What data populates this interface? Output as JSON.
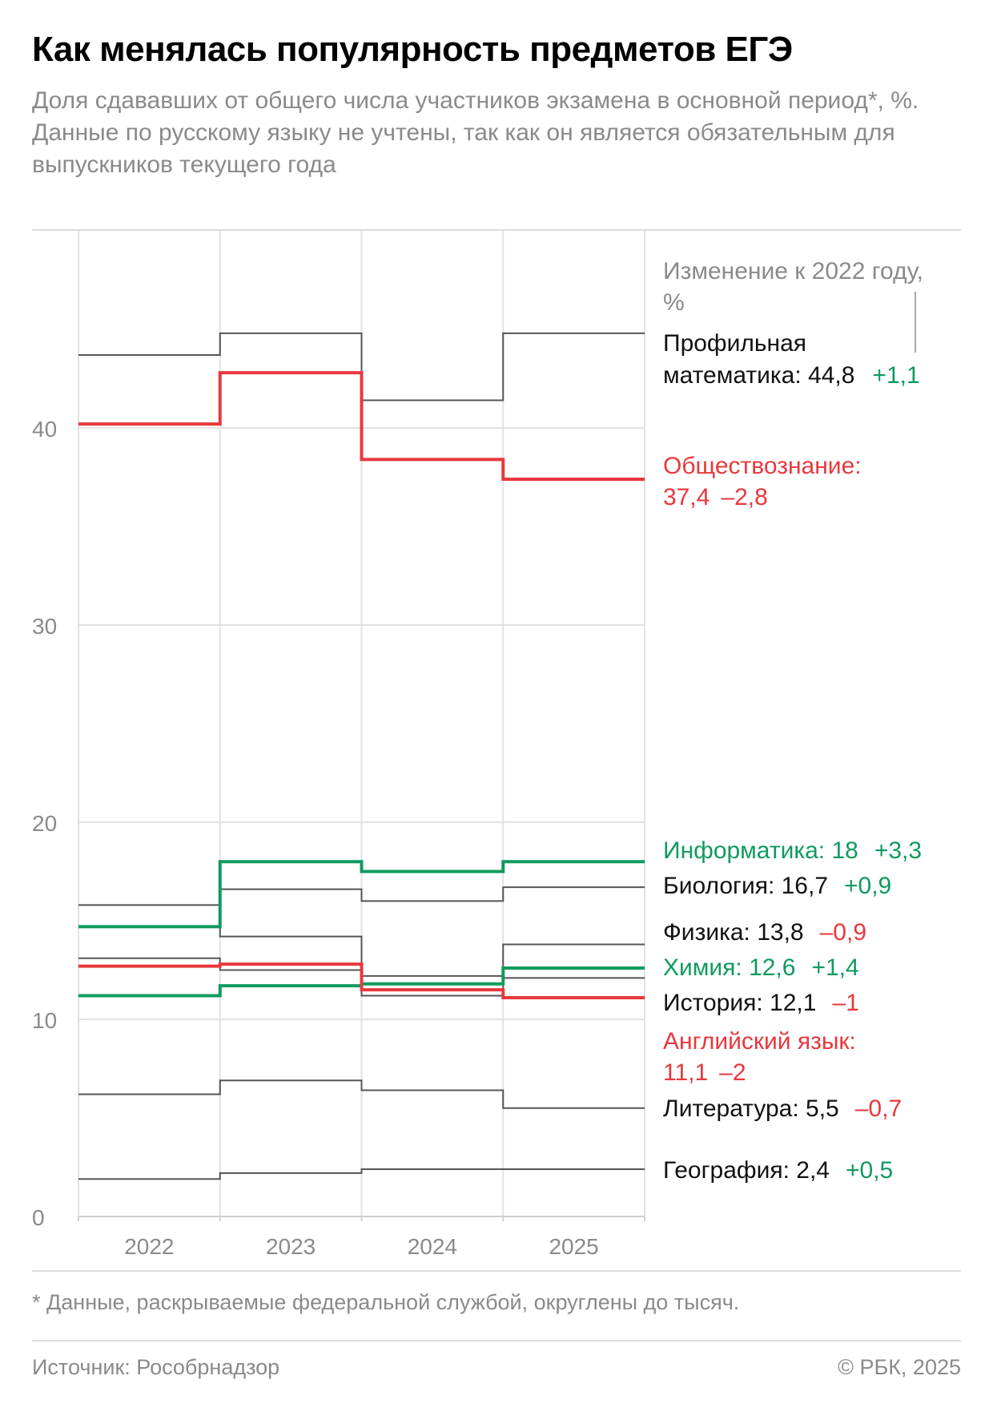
{
  "title": "Как менялась популярность предметов ЕГЭ",
  "subtitle": {
    "line1": "Доля сдававших от общего числа участников экзамена в основной период*, %.",
    "line2": "Данные по русскому языку не учтены, так как он является обязательным для выпускников текущего года"
  },
  "footnote": "* Данные, раскрываемые федеральной службой, округлены до тысяч.",
  "source": "Источник: Рособрнадзор",
  "copyright": "© РБК, 2025",
  "colors": {
    "neutral": "#555555",
    "decline": "#e8383d",
    "growth": "#0f9b5e",
    "grid": "#e2e2e2",
    "axis_text": "#8a8a8a"
  },
  "chart_data": {
    "type": "line",
    "step": true,
    "title": "Как менялась популярность предметов ЕГЭ",
    "x": [
      "2022",
      "2023",
      "2024",
      "2025"
    ],
    "ylim": [
      0,
      50
    ],
    "yticks": [
      "0",
      "10",
      "20",
      "30",
      "40"
    ],
    "ytick_values": [
      0,
      10,
      20,
      30,
      40
    ],
    "grid": true,
    "change_header": "Изменение к 2022 году, %",
    "series": [
      {
        "name": "Профильная математика",
        "values": [
          43.7,
          44.8,
          41.4,
          44.8
        ],
        "final_label": "44,8",
        "change": "+1,1",
        "trend": "neutral",
        "change_trend": "growth"
      },
      {
        "name": "Обществознание",
        "values": [
          40.2,
          42.8,
          38.4,
          37.4
        ],
        "final_label": "37,4",
        "change": "–2,8",
        "trend": "decline",
        "change_trend": "decline"
      },
      {
        "name": "Информатика",
        "values": [
          14.7,
          18.0,
          17.5,
          18.0
        ],
        "final_label": "18",
        "change": "+3,3",
        "trend": "growth",
        "change_trend": "growth"
      },
      {
        "name": "Биология",
        "values": [
          15.8,
          16.6,
          16.0,
          16.7
        ],
        "final_label": "16,7",
        "change": "+0,9",
        "trend": "neutral",
        "change_trend": "growth"
      },
      {
        "name": "Физика",
        "values": [
          14.7,
          14.2,
          12.2,
          13.8
        ],
        "final_label": "13,8",
        "change": "–0,9",
        "trend": "neutral",
        "change_trend": "decline"
      },
      {
        "name": "Химия",
        "values": [
          11.2,
          11.7,
          11.8,
          12.6
        ],
        "final_label": "12,6",
        "change": "+1,4",
        "trend": "growth",
        "change_trend": "growth"
      },
      {
        "name": "История",
        "values": [
          13.1,
          12.5,
          11.2,
          12.1
        ],
        "final_label": "12,1",
        "change": "–1",
        "trend": "neutral",
        "change_trend": "decline"
      },
      {
        "name": "Английский язык",
        "values": [
          12.7,
          12.8,
          11.5,
          11.1
        ],
        "final_label": "11,1",
        "change": "–2",
        "trend": "decline",
        "change_trend": "decline"
      },
      {
        "name": "Литература",
        "values": [
          6.2,
          6.9,
          6.4,
          5.5
        ],
        "final_label": "5,5",
        "change": "–0,7",
        "trend": "neutral",
        "change_trend": "decline"
      },
      {
        "name": "География",
        "values": [
          1.9,
          2.2,
          2.4,
          2.4
        ],
        "final_label": "2,4",
        "change": "+0,5",
        "trend": "neutral",
        "change_trend": "growth"
      }
    ]
  }
}
